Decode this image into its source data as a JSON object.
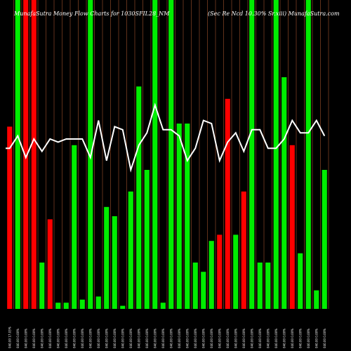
{
  "chart_data": {
    "type": "bar",
    "title": "MunafaSutra  Money Flow  Charts for 1030SFIL28_NM",
    "subtitle": "(Sec Re  Ncd 10.30% Sr.xiii) MunafaSutra.com",
    "colors": {
      "background": "#000000",
      "up": "#00ee00",
      "down": "#ff0000",
      "line": "#ffffff",
      "grid": "#a0522d"
    },
    "grid": true,
    "ylim": [
      0,
      100
    ],
    "categories": [
      "040.00 17.03%",
      "040.00 0.00%",
      "040.00 0.00%",
      "040.00 0.00%",
      "040.00 0.00%",
      "040.00 0.00%",
      "040.00 0.00%",
      "040.00 0.00%",
      "040.00 0.00%",
      "040.00 0.00%",
      "040.00 0.00%",
      "040.00 0.00%",
      "040.00 0.00%",
      "040.00 0.00%",
      "040.00 0.00%",
      "040.00 0.00%",
      "040.00 0.00%",
      "040.00 0.00%",
      "040.00 0.00%",
      "040.00 0.00%",
      "040.00 0.00%",
      "040.00 0.00%",
      "040.00 0.00%",
      "040.00 0.00%",
      "040.00 0.00%",
      "040.00 0.00%",
      "040.00 0.00%",
      "040.00 0.00%",
      "040.00 0.00%",
      "040.00 0.00%",
      "040.00 0.00%",
      "040.00 0.00%",
      "040.00 0.00%",
      "040.00 0.00%",
      "040.00 0.00%",
      "040.00 0.00%",
      "040.00 0.00%",
      "040.00 0.00%",
      "040.00 0.00%",
      "040.00 0.00%",
      "040.00 0.00%",
      "040.00 0.00%",
      "040.00 0.00%",
      "040.00 0.00%",
      "040.00 0.00%",
      "040.00 0.00%",
      "040.00 0.00%",
      "040.00 0.00%",
      "040.00 0.00%",
      "040.00 0.00%",
      "040.00 0.00%",
      "040.00 0.00%",
      "040.00 0.00%",
      "040.00 0.00%",
      "040.00 0.00%",
      "040.00 0.00%",
      "040.00 0.00%",
      "040.00 0.00%",
      "040.00 0.00%",
      "040.00 0.00%",
      "040.00 0.00%",
      "040.00 0.00%",
      "040.00 0.00%",
      "040.00 0.00%",
      "040.00 0.00%",
      "040.00 0.00%",
      "040.00 0.00%",
      "040.00 0.00%",
      "040.00 0.00%",
      "040.00 0.00%"
    ],
    "bars": [
      {
        "value": 59,
        "dir": "down"
      },
      {
        "value": 100,
        "dir": "up"
      },
      {
        "value": 100,
        "dir": "down"
      },
      {
        "value": 100,
        "dir": "down"
      },
      {
        "value": 15,
        "dir": "up"
      },
      {
        "value": 29,
        "dir": "down"
      },
      {
        "value": 2,
        "dir": "up"
      },
      {
        "value": 2,
        "dir": "up"
      },
      {
        "value": 53,
        "dir": "up"
      },
      {
        "value": 3,
        "dir": "up"
      },
      {
        "value": 100,
        "dir": "up"
      },
      {
        "value": 4,
        "dir": "up"
      },
      {
        "value": 33,
        "dir": "up"
      },
      {
        "value": 30,
        "dir": "up"
      },
      {
        "value": 1,
        "dir": "up"
      },
      {
        "value": 38,
        "dir": "up"
      },
      {
        "value": 72,
        "dir": "up"
      },
      {
        "value": 45,
        "dir": "up"
      },
      {
        "value": 100,
        "dir": "up"
      },
      {
        "value": 2,
        "dir": "up"
      },
      {
        "value": 100,
        "dir": "up"
      },
      {
        "value": 60,
        "dir": "up"
      },
      {
        "value": 60,
        "dir": "up"
      },
      {
        "value": 15,
        "dir": "up"
      },
      {
        "value": 12,
        "dir": "up"
      },
      {
        "value": 22,
        "dir": "up"
      },
      {
        "value": 24,
        "dir": "down"
      },
      {
        "value": 68,
        "dir": "down"
      },
      {
        "value": 24,
        "dir": "up"
      },
      {
        "value": 38,
        "dir": "down"
      },
      {
        "value": 100,
        "dir": "up"
      },
      {
        "value": 15,
        "dir": "up"
      },
      {
        "value": 15,
        "dir": "up"
      },
      {
        "value": 100,
        "dir": "up"
      },
      {
        "value": 75,
        "dir": "up"
      },
      {
        "value": 53,
        "dir": "down"
      },
      {
        "value": 18,
        "dir": "up"
      },
      {
        "value": 100,
        "dir": "up"
      },
      {
        "value": 6,
        "dir": "up"
      },
      {
        "value": 45,
        "dir": "up"
      }
    ],
    "line": [
      52,
      56,
      49,
      55,
      51,
      55,
      54,
      55,
      55,
      55,
      49,
      61,
      48,
      59,
      58,
      45,
      53,
      57,
      66,
      58,
      58,
      56,
      48,
      52,
      61,
      60,
      48,
      54,
      57,
      51,
      58,
      58,
      52,
      52,
      55,
      61,
      57,
      57,
      61,
      56
    ]
  }
}
